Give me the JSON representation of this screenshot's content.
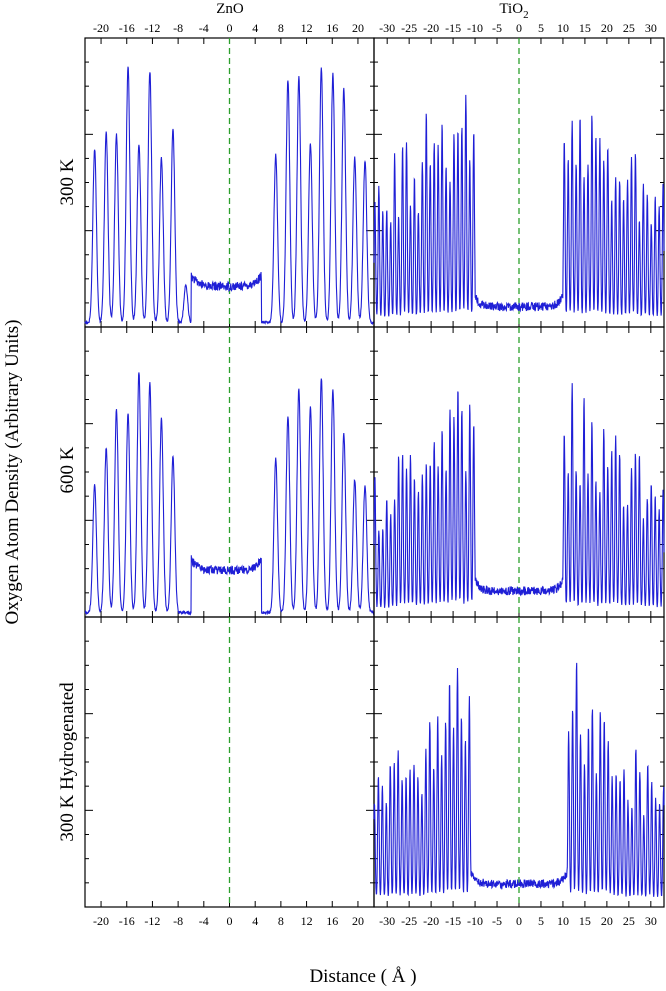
{
  "figure": {
    "xlabel": "Distance ( Å )",
    "ylabel": "Oxygen Atom Density (Arbitrary Units)"
  },
  "columns": [
    {
      "title": "ZnO",
      "xlim": [
        -22.5,
        22.5
      ],
      "ticks": [
        -20,
        -16,
        -12,
        -8,
        -4,
        0,
        4,
        8,
        12,
        16,
        20
      ]
    },
    {
      "title": "TiO",
      "title_sub": "2",
      "xlim": [
        -33,
        33
      ],
      "ticks": [
        -30,
        -25,
        -20,
        -15,
        -10,
        -5,
        0,
        5,
        10,
        15,
        20,
        25,
        30
      ]
    }
  ],
  "rows": [
    {
      "label": "300 K"
    },
    {
      "label": "600 K"
    },
    {
      "label": "300 K Hydrogenated"
    }
  ],
  "colors": {
    "line": "#1f1fd6",
    "reference": "#2ca02c",
    "frame": "#000000"
  },
  "chart_data": {
    "type": "line",
    "xlabel": "Distance ( Å )",
    "ylabel": "Oxygen Atom Density (Arbitrary Units)",
    "reference_line_x": 0,
    "panels": [
      {
        "row": "300 K",
        "column": "ZnO",
        "ylim": [
          0,
          1
        ],
        "gap": [
          -6,
          5
        ],
        "plateau": 0.14,
        "peaks_x": [
          -21,
          -19.2,
          -17.6,
          -15.8,
          -14.1,
          -12.4,
          -10.6,
          -8.8,
          -6.8,
          7.2,
          9.1,
          10.8,
          12.6,
          14.3,
          16.1,
          17.8,
          19.5,
          21.1
        ],
        "peaks_y": [
          0.6,
          0.66,
          0.65,
          0.89,
          0.62,
          0.87,
          0.57,
          0.67,
          0.13,
          0.58,
          0.84,
          0.85,
          0.62,
          0.88,
          0.86,
          0.81,
          0.57,
          0.56
        ]
      },
      {
        "row": "300 K",
        "column": "TiO2",
        "ylim": [
          0,
          1
        ],
        "gap": [
          -10,
          10
        ],
        "plateau": 0.07,
        "peak_spacing": 0.9,
        "peak_envelope": [
          0.55,
          0.97
        ]
      },
      {
        "row": "600 K",
        "column": "ZnO",
        "ylim": [
          0,
          1
        ],
        "gap": [
          -6,
          5
        ],
        "plateau": 0.16,
        "peaks_x": [
          -21,
          -19.2,
          -17.6,
          -15.8,
          -14.1,
          -12.4,
          -10.6,
          -8.8,
          7.2,
          9.1,
          10.8,
          12.6,
          14.3,
          16.1,
          17.8,
          19.5,
          21.1
        ],
        "peaks_y": [
          0.44,
          0.57,
          0.7,
          0.69,
          0.83,
          0.79,
          0.67,
          0.54,
          0.53,
          0.68,
          0.77,
          0.71,
          0.81,
          0.77,
          0.62,
          0.46,
          0.44
        ]
      },
      {
        "row": "600 K",
        "column": "TiO2",
        "ylim": [
          0,
          1
        ],
        "gap": [
          -10,
          10
        ],
        "plateau": 0.09,
        "peak_spacing": 0.9,
        "peak_envelope": [
          0.5,
          0.87
        ]
      },
      {
        "row": "300 K Hydrogenated",
        "column": "ZnO",
        "ylim": [
          0,
          1
        ],
        "empty": true
      },
      {
        "row": "300 K Hydrogenated",
        "column": "TiO2",
        "ylim": [
          0,
          1
        ],
        "gap": [
          -11,
          11
        ],
        "plateau": 0.08,
        "peak_spacing": 0.9,
        "peak_envelope": [
          0.48,
          0.88
        ]
      }
    ]
  }
}
